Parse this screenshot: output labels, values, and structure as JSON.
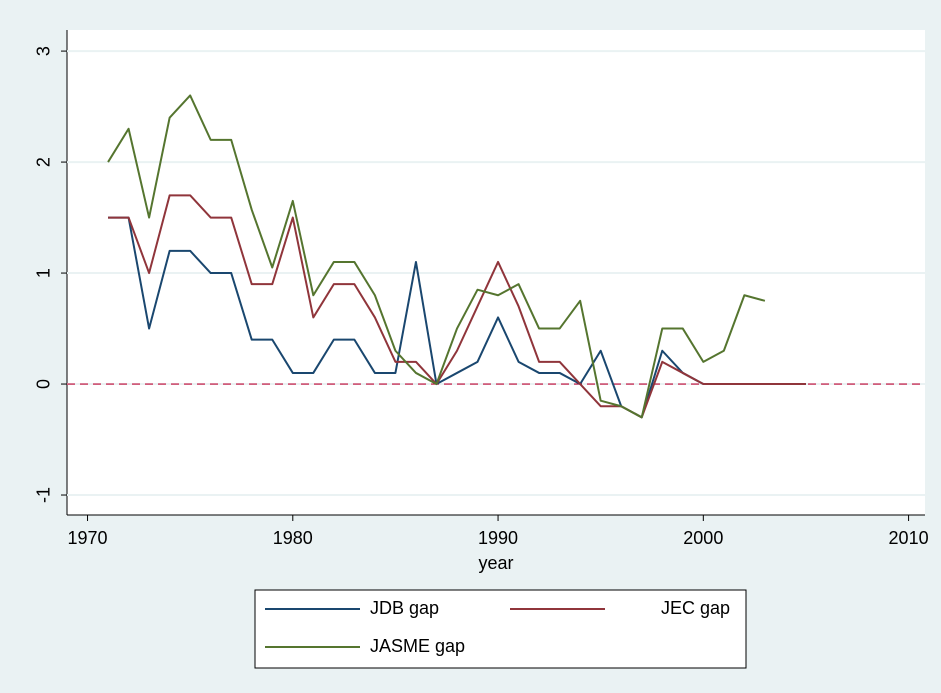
{
  "chart_data": {
    "type": "line",
    "x": [
      1971,
      1972,
      1973,
      1974,
      1975,
      1976,
      1977,
      1978,
      1979,
      1980,
      1981,
      1982,
      1983,
      1984,
      1985,
      1986,
      1987,
      1988,
      1989,
      1990,
      1991,
      1992,
      1993,
      1994,
      1995,
      1996,
      1997,
      1998,
      1999,
      2000,
      2001,
      2002,
      2003,
      2004,
      2005
    ],
    "series": [
      {
        "name": "JDB gap",
        "color": "#1a476f",
        "values": [
          1.5,
          1.5,
          0.5,
          1.2,
          1.2,
          1.0,
          1.0,
          0.4,
          0.4,
          0.1,
          0.1,
          0.4,
          0.4,
          0.1,
          0.1,
          1.1,
          0,
          0.1,
          0.2,
          0.6,
          0.2,
          0.1,
          0.1,
          0,
          0.3,
          -0.2,
          -0.3,
          0.3,
          0.1,
          0,
          0,
          0,
          0,
          0,
          0
        ]
      },
      {
        "name": "JEC gap",
        "color": "#90353b",
        "values": [
          1.5,
          1.5,
          1.0,
          1.7,
          1.7,
          1.5,
          1.5,
          0.9,
          0.9,
          1.5,
          0.6,
          0.9,
          0.9,
          0.6,
          0.2,
          0.2,
          0,
          0.3,
          0.7,
          1.1,
          0.7,
          0.2,
          0.2,
          0,
          -0.2,
          -0.2,
          -0.3,
          0.2,
          0.1,
          0,
          0,
          0,
          0,
          0,
          0
        ]
      },
      {
        "name": "JASME gap",
        "color": "#55752f",
        "values": [
          2.0,
          2.3,
          1.5,
          2.4,
          2.6,
          2.2,
          2.2,
          1.57,
          1.05,
          1.65,
          0.8,
          1.1,
          1.1,
          0.8,
          0.3,
          0.1,
          0,
          0.5,
          0.85,
          0.8,
          0.9,
          0.5,
          0.5,
          0.75,
          -0.15,
          -0.2,
          -0.3,
          0.5,
          0.5,
          0.2,
          0.3,
          0.8,
          0.75,
          null,
          null
        ]
      }
    ],
    "x_label": "year",
    "xlim": [
      1969,
      2010.8
    ],
    "xticks": [
      1970,
      1980,
      1990,
      2000,
      2010
    ],
    "ylim": [
      -1.18,
      3.19
    ],
    "yticks": [
      -1,
      0,
      1,
      2,
      3
    ],
    "grid": true,
    "reference_line": {
      "value": 0,
      "color": "#c10534"
    }
  }
}
